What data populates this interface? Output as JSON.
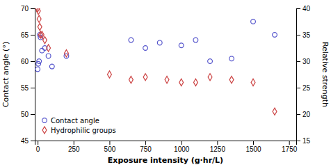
{
  "chart_data": {
    "type": "scatter",
    "x_label": "Exposure intensity (g·hr/L)",
    "y_label": "Contact angle (°)",
    "y2_label": "Relative strength",
    "series": [
      {
        "name": "Contact angle",
        "color": "#5555cc",
        "marker": "circle",
        "x": [
          0,
          5,
          10,
          15,
          20,
          30,
          50,
          75,
          100,
          200,
          650,
          750,
          850,
          1000,
          1100,
          1200,
          1350,
          1500,
          1650
        ],
        "values": [
          58.5,
          59.5,
          60.0,
          65.0,
          64.5,
          62.0,
          62.5,
          61.0,
          59.0,
          61.0,
          64.0,
          62.5,
          63.5,
          63.0,
          64.0,
          60.0,
          60.5,
          67.5,
          65.0
        ]
      },
      {
        "name": "Hydrophilic groups",
        "color": "#cc4444",
        "marker": "diamond",
        "axis": "y2",
        "x": [
          0,
          5,
          10,
          15,
          20,
          30,
          50,
          75,
          200,
          500,
          650,
          750,
          900,
          1000,
          1100,
          1200,
          1350,
          1500,
          1650
        ],
        "values": [
          40.0,
          39.5,
          38.0,
          36.5,
          35.0,
          35.0,
          34.0,
          32.5,
          31.5,
          27.5,
          26.5,
          27.0,
          26.5,
          26.0,
          26.0,
          27.0,
          26.5,
          26.0,
          20.5
        ]
      }
    ],
    "xlim": [
      -20,
      1800
    ],
    "xticks": [
      0,
      250,
      500,
      750,
      1000,
      1250,
      1500,
      1750
    ],
    "ylim": [
      45,
      70
    ],
    "yticks": [
      45,
      50,
      55,
      60,
      65,
      70
    ],
    "y2lim": [
      15,
      40
    ],
    "y2ticks": [
      15,
      20,
      25,
      30,
      35,
      40
    ],
    "grid": false,
    "legend": "lower left"
  }
}
